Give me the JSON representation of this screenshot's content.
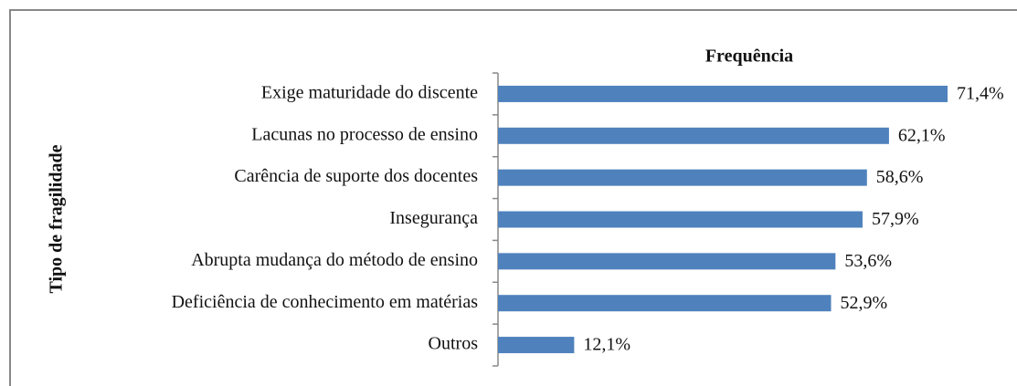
{
  "chart_data": {
    "type": "bar",
    "orientation": "horizontal",
    "title": "Frequência",
    "y_label": "Tipo de fragilidade",
    "categories": [
      "Exige maturidade do discente",
      "Lacunas no processo de ensino",
      "Carência de suporte dos docentes",
      "Insegurança",
      "Abrupta mudança do método de ensino",
      "Deficiência de conhecimento em matérias",
      "Outros"
    ],
    "values": [
      71.4,
      62.1,
      58.6,
      57.9,
      53.6,
      52.9,
      12.1
    ],
    "value_labels": [
      "71,4%",
      "62,1%",
      "58,6%",
      "57,9%",
      "53,6%",
      "52,9%",
      "12,1%"
    ],
    "color": "#4f81bd"
  }
}
